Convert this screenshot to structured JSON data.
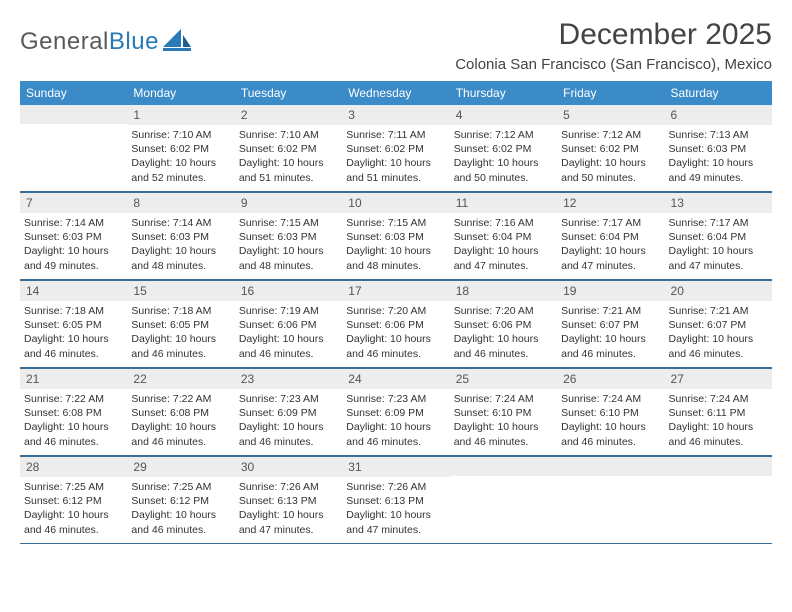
{
  "brand": {
    "text1": "General",
    "text2": "Blue"
  },
  "title": "December 2025",
  "location": "Colonia San Francisco (San Francisco), Mexico",
  "header_bg": "#3b8bc8",
  "header_fg": "#ffffff",
  "rule_color": "#3b6f9a",
  "daynum_bg": "#ededed",
  "dow": [
    "Sunday",
    "Monday",
    "Tuesday",
    "Wednesday",
    "Thursday",
    "Friday",
    "Saturday"
  ],
  "weeks": [
    [
      {
        "n": "",
        "sr": "",
        "ss": "",
        "dl": ""
      },
      {
        "n": "1",
        "sr": "Sunrise: 7:10 AM",
        "ss": "Sunset: 6:02 PM",
        "dl": "Daylight: 10 hours and 52 minutes."
      },
      {
        "n": "2",
        "sr": "Sunrise: 7:10 AM",
        "ss": "Sunset: 6:02 PM",
        "dl": "Daylight: 10 hours and 51 minutes."
      },
      {
        "n": "3",
        "sr": "Sunrise: 7:11 AM",
        "ss": "Sunset: 6:02 PM",
        "dl": "Daylight: 10 hours and 51 minutes."
      },
      {
        "n": "4",
        "sr": "Sunrise: 7:12 AM",
        "ss": "Sunset: 6:02 PM",
        "dl": "Daylight: 10 hours and 50 minutes."
      },
      {
        "n": "5",
        "sr": "Sunrise: 7:12 AM",
        "ss": "Sunset: 6:02 PM",
        "dl": "Daylight: 10 hours and 50 minutes."
      },
      {
        "n": "6",
        "sr": "Sunrise: 7:13 AM",
        "ss": "Sunset: 6:03 PM",
        "dl": "Daylight: 10 hours and 49 minutes."
      }
    ],
    [
      {
        "n": "7",
        "sr": "Sunrise: 7:14 AM",
        "ss": "Sunset: 6:03 PM",
        "dl": "Daylight: 10 hours and 49 minutes."
      },
      {
        "n": "8",
        "sr": "Sunrise: 7:14 AM",
        "ss": "Sunset: 6:03 PM",
        "dl": "Daylight: 10 hours and 48 minutes."
      },
      {
        "n": "9",
        "sr": "Sunrise: 7:15 AM",
        "ss": "Sunset: 6:03 PM",
        "dl": "Daylight: 10 hours and 48 minutes."
      },
      {
        "n": "10",
        "sr": "Sunrise: 7:15 AM",
        "ss": "Sunset: 6:03 PM",
        "dl": "Daylight: 10 hours and 48 minutes."
      },
      {
        "n": "11",
        "sr": "Sunrise: 7:16 AM",
        "ss": "Sunset: 6:04 PM",
        "dl": "Daylight: 10 hours and 47 minutes."
      },
      {
        "n": "12",
        "sr": "Sunrise: 7:17 AM",
        "ss": "Sunset: 6:04 PM",
        "dl": "Daylight: 10 hours and 47 minutes."
      },
      {
        "n": "13",
        "sr": "Sunrise: 7:17 AM",
        "ss": "Sunset: 6:04 PM",
        "dl": "Daylight: 10 hours and 47 minutes."
      }
    ],
    [
      {
        "n": "14",
        "sr": "Sunrise: 7:18 AM",
        "ss": "Sunset: 6:05 PM",
        "dl": "Daylight: 10 hours and 46 minutes."
      },
      {
        "n": "15",
        "sr": "Sunrise: 7:18 AM",
        "ss": "Sunset: 6:05 PM",
        "dl": "Daylight: 10 hours and 46 minutes."
      },
      {
        "n": "16",
        "sr": "Sunrise: 7:19 AM",
        "ss": "Sunset: 6:06 PM",
        "dl": "Daylight: 10 hours and 46 minutes."
      },
      {
        "n": "17",
        "sr": "Sunrise: 7:20 AM",
        "ss": "Sunset: 6:06 PM",
        "dl": "Daylight: 10 hours and 46 minutes."
      },
      {
        "n": "18",
        "sr": "Sunrise: 7:20 AM",
        "ss": "Sunset: 6:06 PM",
        "dl": "Daylight: 10 hours and 46 minutes."
      },
      {
        "n": "19",
        "sr": "Sunrise: 7:21 AM",
        "ss": "Sunset: 6:07 PM",
        "dl": "Daylight: 10 hours and 46 minutes."
      },
      {
        "n": "20",
        "sr": "Sunrise: 7:21 AM",
        "ss": "Sunset: 6:07 PM",
        "dl": "Daylight: 10 hours and 46 minutes."
      }
    ],
    [
      {
        "n": "21",
        "sr": "Sunrise: 7:22 AM",
        "ss": "Sunset: 6:08 PM",
        "dl": "Daylight: 10 hours and 46 minutes."
      },
      {
        "n": "22",
        "sr": "Sunrise: 7:22 AM",
        "ss": "Sunset: 6:08 PM",
        "dl": "Daylight: 10 hours and 46 minutes."
      },
      {
        "n": "23",
        "sr": "Sunrise: 7:23 AM",
        "ss": "Sunset: 6:09 PM",
        "dl": "Daylight: 10 hours and 46 minutes."
      },
      {
        "n": "24",
        "sr": "Sunrise: 7:23 AM",
        "ss": "Sunset: 6:09 PM",
        "dl": "Daylight: 10 hours and 46 minutes."
      },
      {
        "n": "25",
        "sr": "Sunrise: 7:24 AM",
        "ss": "Sunset: 6:10 PM",
        "dl": "Daylight: 10 hours and 46 minutes."
      },
      {
        "n": "26",
        "sr": "Sunrise: 7:24 AM",
        "ss": "Sunset: 6:10 PM",
        "dl": "Daylight: 10 hours and 46 minutes."
      },
      {
        "n": "27",
        "sr": "Sunrise: 7:24 AM",
        "ss": "Sunset: 6:11 PM",
        "dl": "Daylight: 10 hours and 46 minutes."
      }
    ],
    [
      {
        "n": "28",
        "sr": "Sunrise: 7:25 AM",
        "ss": "Sunset: 6:12 PM",
        "dl": "Daylight: 10 hours and 46 minutes."
      },
      {
        "n": "29",
        "sr": "Sunrise: 7:25 AM",
        "ss": "Sunset: 6:12 PM",
        "dl": "Daylight: 10 hours and 46 minutes."
      },
      {
        "n": "30",
        "sr": "Sunrise: 7:26 AM",
        "ss": "Sunset: 6:13 PM",
        "dl": "Daylight: 10 hours and 47 minutes."
      },
      {
        "n": "31",
        "sr": "Sunrise: 7:26 AM",
        "ss": "Sunset: 6:13 PM",
        "dl": "Daylight: 10 hours and 47 minutes."
      },
      {
        "n": "",
        "sr": "",
        "ss": "",
        "dl": ""
      },
      {
        "n": "",
        "sr": "",
        "ss": "",
        "dl": ""
      },
      {
        "n": "",
        "sr": "",
        "ss": "",
        "dl": ""
      }
    ]
  ]
}
